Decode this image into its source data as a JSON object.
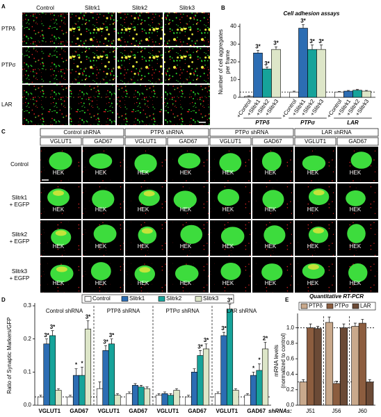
{
  "panel_letters": [
    "A",
    "B",
    "C",
    "D",
    "E"
  ],
  "panel_a": {
    "columns": [
      "Control",
      "Slitrk1",
      "Slitrk2",
      "Slitrk3"
    ],
    "rows": [
      "PTPδ",
      "PTPσ",
      "LAR"
    ]
  },
  "panel_c": {
    "shrnas": [
      "Control shRNA",
      "PTPδ shRNA",
      "PTPσ shRNA",
      "LAR shRNA"
    ],
    "markers": [
      "VGLUT1",
      "GAD67"
    ],
    "rows": [
      [
        "Control"
      ],
      [
        "Slitrk1",
        "+ EGFP"
      ],
      [
        "Slitrk2",
        "+ EGFP"
      ],
      [
        "Slitrk3",
        "+ EGFP"
      ]
    ],
    "cell_label": "HEK"
  },
  "chart_data": [
    {
      "type": "bar",
      "title": "Cell adhesion assays",
      "ylabel": [
        "Number of cell aggregates",
        "per frame"
      ],
      "categories": [
        "PTPδ",
        "PTPσ",
        "LAR"
      ],
      "ylim": [
        0,
        40
      ],
      "yticks": [
        0,
        10,
        20,
        30,
        40
      ],
      "reference_lines": [
        3
      ],
      "series": [
        {
          "name": "+Control",
          "color": "#ffffff",
          "values": [
            0.5,
            3,
            3
          ],
          "errors": [
            0.3,
            0.5,
            0.3
          ],
          "annotations": [
            null,
            null,
            null
          ]
        },
        {
          "name": "+Slitrk1",
          "color": "#2c6db3",
          "values": [
            25,
            39,
            3.5
          ],
          "errors": [
            1.5,
            2,
            0.4
          ],
          "annotations": [
            "3*",
            "3*",
            null
          ]
        },
        {
          "name": "+Slitrk2",
          "color": "#16a39a",
          "values": [
            16,
            27,
            4
          ],
          "errors": [
            1,
            2.5,
            0.4
          ],
          "annotations": [
            "3*",
            "3*",
            null
          ]
        },
        {
          "name": "+Slitrk3",
          "color": "#dde6c8",
          "values": [
            27,
            27,
            3.5
          ],
          "errors": [
            1.5,
            2.5,
            0.4
          ],
          "annotations": [
            "3*",
            "3*",
            null
          ]
        }
      ]
    },
    {
      "type": "bar",
      "ylabel": [
        "Ratio of Synaptic Markers/GFP"
      ],
      "groups": [
        "Control shRNA",
        "PTPδ shRNA",
        "PTPσ shRNA",
        "LAR shRNA"
      ],
      "categories": [
        "VGLUT1",
        "GAD67",
        "VGLUT1",
        "GAD67",
        "VGLUT1",
        "GAD67",
        "VGLUT1",
        "GAD67"
      ],
      "ylim": [
        0,
        0.3
      ],
      "yticks": [
        {
          "value": 0,
          "label": "0.0"
        },
        0.1,
        0.2,
        0.3
      ],
      "reference_lines": [
        0.025
      ],
      "series": [
        {
          "name": "Control",
          "color": "#ffffff",
          "values": [
            0.025,
            0.025,
            0.05,
            0.035,
            0.03,
            0.025,
            0.035,
            0.03
          ],
          "errors": [
            0.005,
            0.005,
            0.02,
            0.005,
            0.005,
            0.005,
            0.005,
            0.005
          ],
          "annotations": [
            null,
            null,
            null,
            null,
            null,
            null,
            null,
            null
          ]
        },
        {
          "name": "Slitrk1",
          "color": "#2c6db3",
          "values": [
            0.185,
            0.09,
            0.165,
            0.06,
            0.035,
            0.1,
            0.21,
            0.09
          ],
          "errors": [
            0.015,
            0.02,
            0.015,
            0.005,
            0.005,
            0.01,
            0.01,
            0.01
          ],
          "annotations": [
            "3*",
            "*",
            "3*",
            null,
            null,
            null,
            "3*",
            "*"
          ]
        },
        {
          "name": "Slitrk2",
          "color": "#16a39a",
          "values": [
            0.21,
            0.09,
            0.185,
            0.055,
            0.03,
            0.15,
            0.29,
            0.105
          ],
          "errors": [
            0.015,
            0.025,
            0.015,
            0.005,
            0.005,
            0.015,
            0.015,
            0.02
          ],
          "annotations": [
            "3*",
            "*",
            "3*",
            null,
            null,
            "3*",
            "3*",
            "*"
          ]
        },
        {
          "name": "Slitrk3",
          "color": "#dde6c8",
          "values": [
            0.045,
            0.23,
            0.03,
            0.05,
            0.045,
            0.17,
            0.045,
            0.17
          ],
          "errors": [
            0.005,
            0.025,
            0.005,
            0.005,
            0.005,
            0.015,
            0.005,
            0.02
          ],
          "annotations": [
            null,
            "3*",
            null,
            null,
            null,
            "3*",
            null,
            "2*"
          ]
        }
      ]
    },
    {
      "type": "bar",
      "title": "Quantitative RT-PCR",
      "ylabel": [
        "mRNA levels",
        "(normalized to control)"
      ],
      "xlabel": "shRNAs:",
      "categories": [
        "J51",
        "J56",
        "J60"
      ],
      "ylim": [
        0,
        1.15
      ],
      "yticks": [
        {
          "value": 0,
          "label": "0.0"
        },
        0.2,
        0.4,
        0.6,
        0.8,
        {
          "value": 1,
          "label": "1.0"
        }
      ],
      "reference_lines": [
        1,
        0.3
      ],
      "series": [
        {
          "name": "PTPδ",
          "color": "#c9a98c",
          "values": [
            0.3,
            1.07,
            1.02
          ],
          "errors": [
            0.03,
            0.07,
            0.04
          ]
        },
        {
          "name": "PTPσ",
          "color": "#8c5d3f",
          "values": [
            1,
            0.28,
            1.06
          ],
          "errors": [
            0.05,
            0.03,
            0.05
          ]
        },
        {
          "name": "LAR",
          "color": "#6b4a36",
          "values": [
            0.99,
            1,
            0.3
          ],
          "errors": [
            0.03,
            0.05,
            0.03
          ]
        }
      ]
    }
  ]
}
